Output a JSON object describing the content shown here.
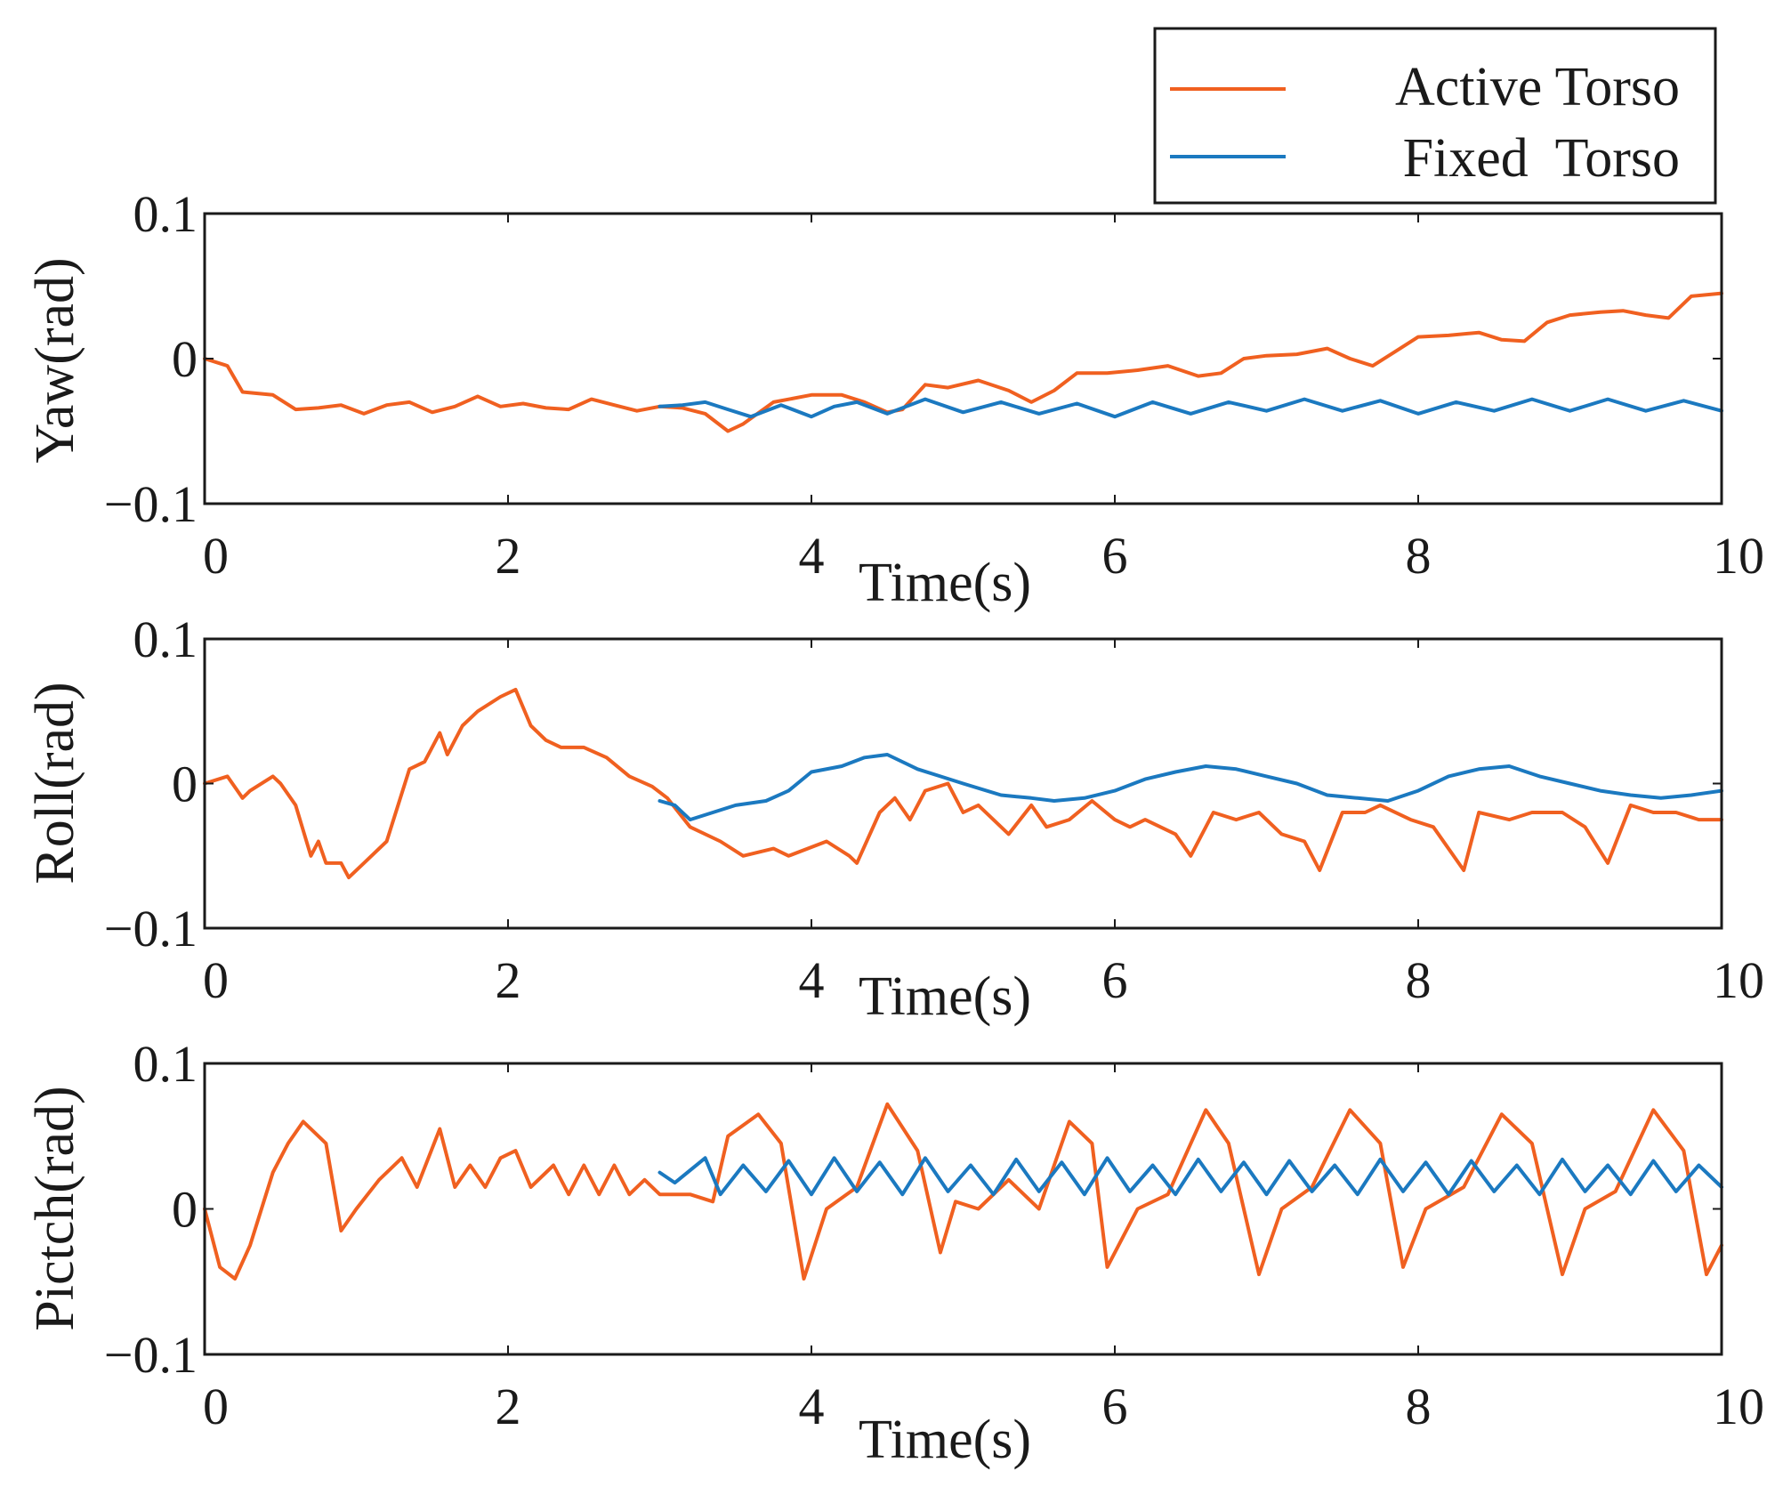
{
  "legend": [
    {
      "label": "Active Torso",
      "color": "#f06020"
    },
    {
      "label": "Fixed  Torso",
      "color": "#1b79c0"
    }
  ],
  "chart_data": [
    {
      "type": "line",
      "title": "",
      "xlabel": "Time(s)",
      "ylabel": "Yaw(rad)",
      "xlim": [
        0,
        10
      ],
      "ylim": [
        -0.1,
        0.1
      ],
      "xticks": [
        "0",
        "2",
        "4",
        "6",
        "8",
        "10"
      ],
      "yticks": [
        "−0.1",
        "0",
        "0.1"
      ],
      "series": [
        {
          "name": "Active Torso",
          "color": "#f06020",
          "x": [
            0,
            0.15,
            0.25,
            0.45,
            0.6,
            0.75,
            0.9,
            1.05,
            1.2,
            1.35,
            1.5,
            1.65,
            1.8,
            1.95,
            2.1,
            2.25,
            2.4,
            2.55,
            2.7,
            2.85,
            3.0,
            3.15,
            3.3,
            3.45,
            3.55,
            3.75,
            4.0,
            4.2,
            4.35,
            4.5,
            4.6,
            4.75,
            4.9,
            5.1,
            5.3,
            5.45,
            5.6,
            5.75,
            5.95,
            6.15,
            6.35,
            6.55,
            6.7,
            6.85,
            7.0,
            7.2,
            7.4,
            7.55,
            7.7,
            7.85,
            8.0,
            8.2,
            8.4,
            8.55,
            8.7,
            8.85,
            9.0,
            9.2,
            9.35,
            9.5,
            9.65,
            9.8,
            10.0
          ],
          "y": [
            0.0,
            -0.005,
            -0.023,
            -0.025,
            -0.035,
            -0.034,
            -0.032,
            -0.038,
            -0.032,
            -0.03,
            -0.037,
            -0.033,
            -0.026,
            -0.033,
            -0.031,
            -0.034,
            -0.035,
            -0.028,
            -0.032,
            -0.036,
            -0.033,
            -0.034,
            -0.038,
            -0.05,
            -0.045,
            -0.03,
            -0.025,
            -0.025,
            -0.03,
            -0.037,
            -0.035,
            -0.018,
            -0.02,
            -0.015,
            -0.022,
            -0.03,
            -0.022,
            -0.01,
            -0.01,
            -0.008,
            -0.005,
            -0.012,
            -0.01,
            0.0,
            0.002,
            0.003,
            0.007,
            0.0,
            -0.005,
            0.005,
            0.015,
            0.016,
            0.018,
            0.013,
            0.012,
            0.025,
            0.03,
            0.032,
            0.033,
            0.03,
            0.028,
            0.043,
            0.045
          ]
        },
        {
          "name": "Fixed Torso",
          "color": "#1b79c0",
          "x": [
            3.0,
            3.15,
            3.3,
            3.45,
            3.6,
            3.8,
            4.0,
            4.15,
            4.3,
            4.5,
            4.75,
            5.0,
            5.25,
            5.5,
            5.75,
            6.0,
            6.25,
            6.5,
            6.75,
            7.0,
            7.25,
            7.5,
            7.75,
            8.0,
            8.25,
            8.5,
            8.75,
            9.0,
            9.25,
            9.5,
            9.75,
            10.0
          ],
          "y": [
            -0.033,
            -0.032,
            -0.03,
            -0.035,
            -0.04,
            -0.032,
            -0.04,
            -0.033,
            -0.03,
            -0.038,
            -0.028,
            -0.037,
            -0.03,
            -0.038,
            -0.031,
            -0.04,
            -0.03,
            -0.038,
            -0.03,
            -0.036,
            -0.028,
            -0.036,
            -0.029,
            -0.038,
            -0.03,
            -0.036,
            -0.028,
            -0.036,
            -0.028,
            -0.036,
            -0.029,
            -0.036
          ]
        }
      ]
    },
    {
      "type": "line",
      "title": "",
      "xlabel": "Time(s)",
      "ylabel": "Roll(rad)",
      "xlim": [
        0,
        10
      ],
      "ylim": [
        -0.1,
        0.1
      ],
      "xticks": [
        "0",
        "2",
        "4",
        "6",
        "8",
        "10"
      ],
      "yticks": [
        "−0.1",
        "0",
        "0.1"
      ],
      "series": [
        {
          "name": "Active Torso",
          "color": "#f06020",
          "x": [
            0,
            0.15,
            0.25,
            0.3,
            0.45,
            0.5,
            0.6,
            0.7,
            0.75,
            0.8,
            0.9,
            0.95,
            1.05,
            1.2,
            1.35,
            1.45,
            1.55,
            1.6,
            1.7,
            1.8,
            1.95,
            2.05,
            2.15,
            2.25,
            2.35,
            2.5,
            2.65,
            2.8,
            2.95,
            3.05,
            3.2,
            3.4,
            3.55,
            3.75,
            3.85,
            4.1,
            4.25,
            4.3,
            4.45,
            4.55,
            4.65,
            4.75,
            4.9,
            5.0,
            5.1,
            5.3,
            5.45,
            5.55,
            5.7,
            5.85,
            6.0,
            6.1,
            6.2,
            6.4,
            6.5,
            6.65,
            6.8,
            6.95,
            7.1,
            7.25,
            7.35,
            7.5,
            7.65,
            7.75,
            7.95,
            8.1,
            8.3,
            8.4,
            8.6,
            8.75,
            8.95,
            9.1,
            9.25,
            9.4,
            9.55,
            9.7,
            9.85,
            10.0
          ],
          "y": [
            0.0,
            0.005,
            -0.01,
            -0.005,
            0.005,
            0.0,
            -0.015,
            -0.05,
            -0.04,
            -0.055,
            -0.055,
            -0.065,
            -0.055,
            -0.04,
            0.01,
            0.015,
            0.035,
            0.02,
            0.04,
            0.05,
            0.06,
            0.065,
            0.04,
            0.03,
            0.025,
            0.025,
            0.018,
            0.005,
            -0.002,
            -0.01,
            -0.03,
            -0.04,
            -0.05,
            -0.045,
            -0.05,
            -0.04,
            -0.05,
            -0.055,
            -0.02,
            -0.01,
            -0.025,
            -0.005,
            0.0,
            -0.02,
            -0.015,
            -0.035,
            -0.015,
            -0.03,
            -0.025,
            -0.012,
            -0.025,
            -0.03,
            -0.025,
            -0.035,
            -0.05,
            -0.02,
            -0.025,
            -0.02,
            -0.035,
            -0.04,
            -0.06,
            -0.02,
            -0.02,
            -0.015,
            -0.025,
            -0.03,
            -0.06,
            -0.02,
            -0.025,
            -0.02,
            -0.02,
            -0.03,
            -0.055,
            -0.015,
            -0.02,
            -0.02,
            -0.025,
            -0.025
          ]
        },
        {
          "name": "Fixed Torso",
          "color": "#1b79c0",
          "x": [
            3.0,
            3.1,
            3.2,
            3.35,
            3.5,
            3.7,
            3.85,
            4.0,
            4.2,
            4.35,
            4.5,
            4.7,
            4.85,
            5.0,
            5.25,
            5.45,
            5.6,
            5.8,
            6.0,
            6.2,
            6.4,
            6.6,
            6.8,
            7.0,
            7.2,
            7.4,
            7.6,
            7.8,
            8.0,
            8.2,
            8.4,
            8.6,
            8.8,
            9.0,
            9.2,
            9.4,
            9.6,
            9.8,
            10.0
          ],
          "y": [
            -0.012,
            -0.015,
            -0.025,
            -0.02,
            -0.015,
            -0.012,
            -0.005,
            0.008,
            0.012,
            0.018,
            0.02,
            0.01,
            0.005,
            0.0,
            -0.008,
            -0.01,
            -0.012,
            -0.01,
            -0.005,
            0.003,
            0.008,
            0.012,
            0.01,
            0.005,
            0.0,
            -0.008,
            -0.01,
            -0.012,
            -0.005,
            0.005,
            0.01,
            0.012,
            0.005,
            0.0,
            -0.005,
            -0.008,
            -0.01,
            -0.008,
            -0.005
          ]
        }
      ]
    },
    {
      "type": "line",
      "title": "",
      "xlabel": "Time(s)",
      "ylabel": "Pictch(rad)",
      "xlim": [
        0,
        10
      ],
      "ylim": [
        -0.1,
        0.1
      ],
      "xticks": [
        "0",
        "2",
        "4",
        "6",
        "8",
        "10"
      ],
      "yticks": [
        "−0.1",
        "0",
        "0.1"
      ],
      "series": [
        {
          "name": "Active Torso",
          "color": "#f06020",
          "x": [
            0,
            0.1,
            0.2,
            0.3,
            0.45,
            0.55,
            0.65,
            0.8,
            0.9,
            1.0,
            1.15,
            1.3,
            1.4,
            1.55,
            1.65,
            1.75,
            1.85,
            1.95,
            2.05,
            2.15,
            2.3,
            2.4,
            2.5,
            2.6,
            2.7,
            2.8,
            2.9,
            3.0,
            3.2,
            3.35,
            3.45,
            3.65,
            3.8,
            3.95,
            4.1,
            4.3,
            4.5,
            4.7,
            4.85,
            4.95,
            5.1,
            5.3,
            5.5,
            5.7,
            5.85,
            5.95,
            6.15,
            6.35,
            6.6,
            6.75,
            6.95,
            7.1,
            7.3,
            7.55,
            7.75,
            7.9,
            8.05,
            8.3,
            8.55,
            8.75,
            8.95,
            9.1,
            9.3,
            9.55,
            9.75,
            9.9,
            10.0
          ],
          "y": [
            0.0,
            -0.04,
            -0.048,
            -0.025,
            0.025,
            0.045,
            0.06,
            0.045,
            -0.015,
            0.0,
            0.02,
            0.035,
            0.015,
            0.055,
            0.015,
            0.03,
            0.015,
            0.035,
            0.04,
            0.015,
            0.03,
            0.01,
            0.03,
            0.01,
            0.03,
            0.01,
            0.02,
            0.01,
            0.01,
            0.005,
            0.05,
            0.065,
            0.045,
            -0.048,
            0.0,
            0.015,
            0.072,
            0.04,
            -0.03,
            0.005,
            0.0,
            0.02,
            0.0,
            0.06,
            0.045,
            -0.04,
            0.0,
            0.01,
            0.068,
            0.045,
            -0.045,
            0.0,
            0.015,
            0.068,
            0.045,
            -0.04,
            0.0,
            0.015,
            0.065,
            0.045,
            -0.045,
            0.0,
            0.012,
            0.068,
            0.04,
            -0.045,
            -0.025
          ]
        },
        {
          "name": "Fixed Torso",
          "color": "#1b79c0",
          "x": [
            3.0,
            3.1,
            3.3,
            3.4,
            3.55,
            3.7,
            3.85,
            4.0,
            4.15,
            4.3,
            4.45,
            4.6,
            4.75,
            4.9,
            5.05,
            5.2,
            5.35,
            5.5,
            5.65,
            5.8,
            5.95,
            6.1,
            6.25,
            6.4,
            6.55,
            6.7,
            6.85,
            7.0,
            7.15,
            7.3,
            7.45,
            7.6,
            7.75,
            7.9,
            8.05,
            8.2,
            8.35,
            8.5,
            8.65,
            8.8,
            8.95,
            9.1,
            9.25,
            9.4,
            9.55,
            9.7,
            9.85,
            10.0
          ],
          "y": [
            0.025,
            0.018,
            0.035,
            0.01,
            0.03,
            0.012,
            0.033,
            0.01,
            0.035,
            0.012,
            0.032,
            0.01,
            0.035,
            0.012,
            0.03,
            0.01,
            0.034,
            0.012,
            0.032,
            0.01,
            0.035,
            0.012,
            0.03,
            0.01,
            0.034,
            0.012,
            0.032,
            0.01,
            0.033,
            0.012,
            0.03,
            0.01,
            0.034,
            0.012,
            0.032,
            0.01,
            0.033,
            0.012,
            0.03,
            0.01,
            0.034,
            0.012,
            0.03,
            0.01,
            0.033,
            0.012,
            0.03,
            0.015
          ]
        }
      ]
    }
  ]
}
